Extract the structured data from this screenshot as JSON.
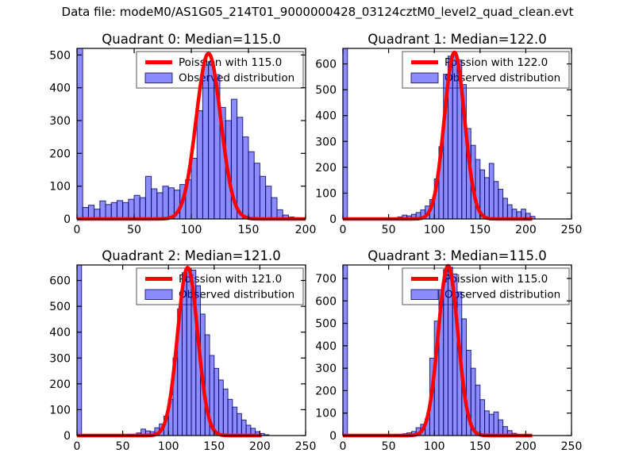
{
  "figure": {
    "title": "Data file: modeM0/AS1G05_214T01_9000000428_03124cztM0_level2_quad_clean.evt",
    "background": "#ffffff"
  },
  "colors": {
    "bar_fill": "rgba(0,0,255,0.45)",
    "bar_edge": "rgba(10,10,100,0.85)",
    "curve": "#ff0000",
    "legend_border": "#555555",
    "legend_background": "#ffffff",
    "axis": "#000000",
    "text": "#000000"
  },
  "chart_data": [
    {
      "type": "bar",
      "title": "Quadrant 0: Median=115.0",
      "median": 115.0,
      "legend": [
        "Poission with 115.0",
        "Observed distribution"
      ],
      "legend_position": "upper right",
      "grid": false,
      "xlim": [
        0,
        200
      ],
      "ylim": [
        0,
        520
      ],
      "xticks": [
        0,
        50,
        100,
        150,
        200
      ],
      "yticks": [
        0,
        100,
        200,
        300,
        400,
        500
      ],
      "bins": {
        "start": 0,
        "width": 5
      },
      "values": [
        560,
        35,
        42,
        30,
        55,
        44,
        50,
        56,
        50,
        60,
        72,
        65,
        130,
        92,
        80,
        100,
        95,
        88,
        105,
        120,
        185,
        330,
        470,
        480,
        440,
        340,
        300,
        365,
        310,
        250,
        205,
        170,
        130,
        100,
        65,
        28,
        12,
        6,
        4,
        2
      ],
      "poisson": {
        "mean": 115.0,
        "sigma": 10.72,
        "amplitude": 505,
        "x_end": 200
      }
    },
    {
      "type": "bar",
      "title": "Quadrant 1: Median=122.0",
      "median": 122.0,
      "legend": [
        "Poission with 122.0",
        "Observed distribution"
      ],
      "legend_position": "upper right",
      "grid": false,
      "xlim": [
        0,
        250
      ],
      "ylim": [
        0,
        660
      ],
      "xticks": [
        0,
        50,
        100,
        150,
        200,
        250
      ],
      "yticks": [
        0,
        100,
        200,
        300,
        400,
        500,
        600
      ],
      "bins": {
        "start": 0,
        "width": 5
      },
      "values": [
        660,
        0,
        0,
        0,
        0,
        0,
        0,
        0,
        0,
        0,
        0,
        0,
        8,
        15,
        12,
        18,
        25,
        35,
        50,
        75,
        155,
        280,
        560,
        630,
        640,
        615,
        520,
        350,
        285,
        230,
        190,
        160,
        215,
        145,
        115,
        80,
        55,
        38,
        28,
        38,
        22,
        10,
        0,
        0,
        0,
        0,
        0,
        0,
        0,
        0
      ],
      "poisson": {
        "mean": 122.0,
        "sigma": 11.05,
        "amplitude": 645,
        "x_end": 207
      }
    },
    {
      "type": "bar",
      "title": "Quadrant 2: Median=121.0",
      "median": 121.0,
      "legend": [
        "Poission with 121.0",
        "Observed distribution"
      ],
      "legend_position": "upper right",
      "grid": false,
      "xlim": [
        0,
        250
      ],
      "ylim": [
        0,
        660
      ],
      "xticks": [
        0,
        50,
        100,
        150,
        200,
        250
      ],
      "yticks": [
        0,
        100,
        200,
        300,
        400,
        500,
        600
      ],
      "bins": {
        "start": 0,
        "width": 5
      },
      "values": [
        660,
        0,
        0,
        0,
        0,
        0,
        0,
        0,
        0,
        0,
        0,
        0,
        5,
        10,
        25,
        18,
        15,
        30,
        45,
        75,
        140,
        300,
        490,
        630,
        645,
        640,
        580,
        470,
        390,
        310,
        260,
        215,
        180,
        140,
        110,
        85,
        60,
        40,
        28,
        15,
        8,
        3,
        0,
        0,
        0,
        0,
        0,
        0,
        0,
        0
      ],
      "poisson": {
        "mean": 121.0,
        "sigma": 11.0,
        "amplitude": 650,
        "x_end": 202
      }
    },
    {
      "type": "bar",
      "title": "Quadrant 3: Median=115.0",
      "median": 115.0,
      "legend": [
        "Poission with 115.0",
        "Observed distribution"
      ],
      "legend_position": "upper right",
      "grid": false,
      "xlim": [
        0,
        250
      ],
      "ylim": [
        0,
        760
      ],
      "xticks": [
        0,
        50,
        100,
        150,
        200,
        250
      ],
      "yticks": [
        0,
        100,
        200,
        300,
        400,
        500,
        600,
        700
      ],
      "bins": {
        "start": 0,
        "width": 5
      },
      "values": [
        760,
        0,
        0,
        0,
        0,
        0,
        0,
        0,
        0,
        0,
        0,
        0,
        0,
        8,
        12,
        18,
        35,
        50,
        75,
        345,
        510,
        650,
        740,
        750,
        720,
        640,
        520,
        380,
        300,
        225,
        160,
        110,
        95,
        105,
        70,
        40,
        22,
        10,
        5,
        0,
        0,
        0,
        0,
        0,
        0,
        0,
        0,
        0,
        0,
        0
      ],
      "poisson": {
        "mean": 115.0,
        "sigma": 10.72,
        "amplitude": 756,
        "x_end": 207
      }
    }
  ]
}
